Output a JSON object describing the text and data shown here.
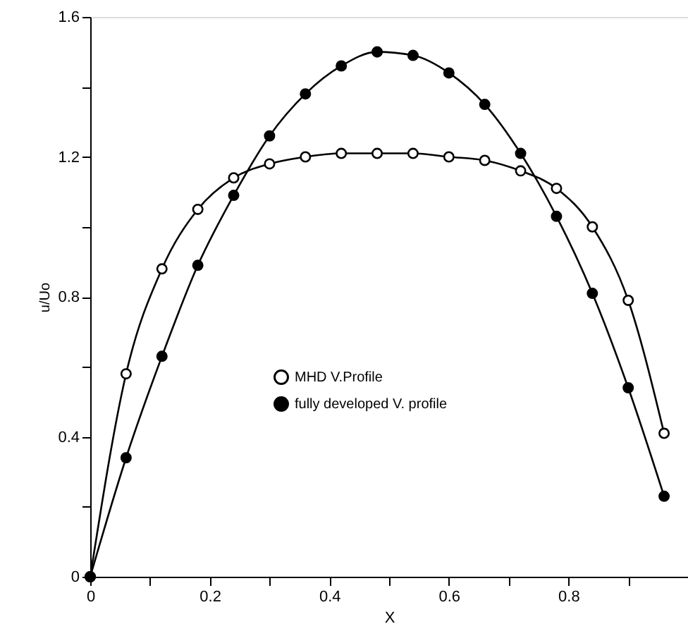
{
  "chart_data": {
    "type": "line",
    "xlabel": "X",
    "ylabel": "u/Uo",
    "x": [
      0,
      0.06,
      0.12,
      0.18,
      0.24,
      0.3,
      0.36,
      0.42,
      0.48,
      0.54,
      0.6,
      0.66,
      0.72,
      0.78,
      0.84,
      0.9,
      0.96
    ],
    "series": [
      {
        "name": "MHD V.Profile",
        "color": "#000000",
        "values": [
          0,
          0.58,
          0.88,
          1.05,
          1.14,
          1.18,
          1.2,
          1.21,
          1.21,
          1.21,
          1.2,
          1.19,
          1.16,
          1.11,
          1.0,
          0.79,
          0.41
        ]
      },
      {
        "name": "fully developed V. profile",
        "color": "#000000",
        "values": [
          0,
          0.34,
          0.63,
          0.89,
          1.09,
          1.26,
          1.38,
          1.46,
          1.5,
          1.49,
          1.44,
          1.35,
          1.21,
          1.03,
          0.81,
          0.54,
          0.23
        ]
      }
    ],
    "xlim": [
      0,
      1
    ],
    "ylim": [
      0,
      1.6
    ],
    "xticks": [
      0,
      {
        "value": 0.1,
        "label": null
      },
      0.2,
      {
        "value": 0.3,
        "label": null
      },
      0.4,
      {
        "value": 0.5,
        "label": null
      },
      0.6,
      {
        "value": 0.7,
        "label": null
      },
      0.8,
      {
        "value": 0.9,
        "label": null
      }
    ],
    "yticks": [
      0,
      {
        "value": 0.2,
        "label": null
      },
      0.4,
      {
        "value": 0.6,
        "label": null
      },
      0.8,
      {
        "value": 1.0,
        "label": null
      },
      1.2,
      {
        "value": 1.4,
        "label": null
      },
      1.6
    ],
    "grid": false,
    "legend": "left",
    "marker": "circle",
    "line_style": "solid"
  }
}
